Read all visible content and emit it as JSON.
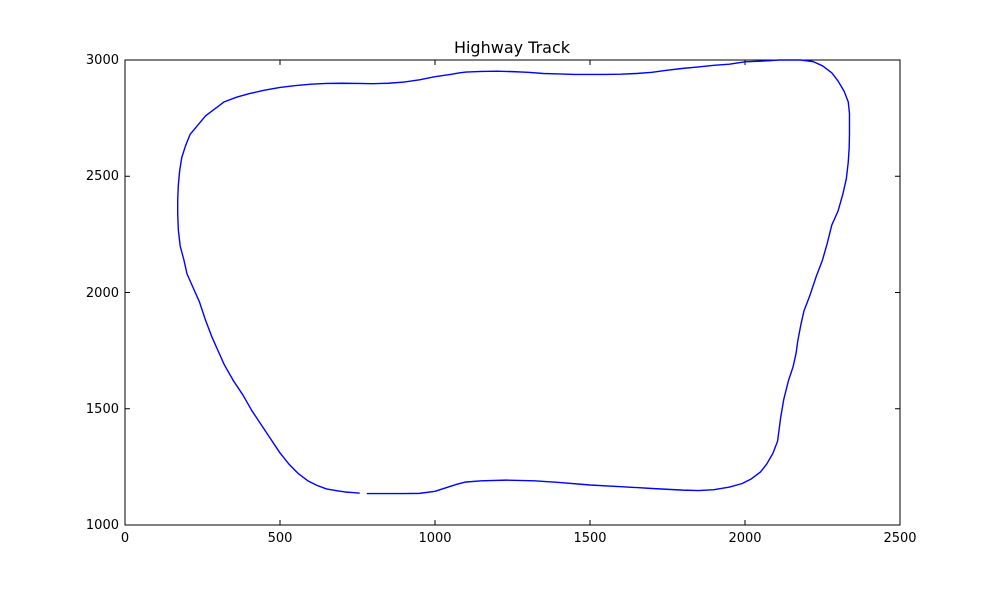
{
  "chart_data": {
    "type": "line",
    "title": "Highway Track",
    "xlabel": "",
    "ylabel": "",
    "xlim": [
      0,
      2500
    ],
    "ylim": [
      1000,
      3000
    ],
    "xticks": [
      0,
      500,
      1000,
      1500,
      2000,
      2500
    ],
    "yticks": [
      1000,
      1500,
      2000,
      2500,
      3000
    ],
    "xtick_labels": [
      "0",
      "500",
      "1000",
      "1500",
      "2000",
      "2500"
    ],
    "ytick_labels": [
      "1000",
      "1500",
      "2000",
      "2500",
      "3000"
    ],
    "grid": false,
    "line_color": "#0000ff",
    "series": [
      {
        "x": [
          780,
          840,
          900,
          950,
          1000,
          1040,
          1070,
          1100,
          1150,
          1230,
          1320,
          1400,
          1500,
          1600,
          1700,
          1800,
          1850,
          1900,
          1950,
          1990,
          2020,
          2050,
          2070,
          2090,
          2105,
          2110,
          2115,
          2125,
          2140,
          2155,
          2165,
          2170,
          2180,
          2190,
          2210,
          2230,
          2250,
          2265,
          2280,
          2300,
          2315,
          2327,
          2333,
          2336,
          2337,
          2337,
          2333,
          2320,
          2300,
          2280,
          2250,
          2220,
          2180,
          2140,
          2110,
          2080,
          2050,
          2000,
          1950,
          1900,
          1850,
          1800,
          1750,
          1700,
          1650,
          1600,
          1550,
          1500,
          1450,
          1400,
          1350,
          1300,
          1250,
          1200,
          1150,
          1100,
          1080,
          1050,
          1000,
          950,
          900,
          850,
          800,
          750,
          700,
          650,
          600,
          550,
          500,
          450,
          400,
          360,
          320,
          290,
          260,
          235,
          210,
          195,
          183,
          176,
          172,
          170,
          170,
          172,
          178,
          190,
          200,
          220,
          240,
          260,
          280,
          300,
          320,
          350,
          380,
          410,
          440,
          470,
          500,
          530,
          560,
          590,
          620,
          650,
          680,
          710,
          740,
          757
        ],
        "y": [
          1135,
          1135,
          1135,
          1136,
          1145,
          1162,
          1175,
          1185,
          1190,
          1193,
          1190,
          1183,
          1172,
          1165,
          1157,
          1150,
          1148,
          1152,
          1163,
          1178,
          1198,
          1228,
          1262,
          1308,
          1360,
          1410,
          1462,
          1540,
          1620,
          1680,
          1740,
          1790,
          1860,
          1920,
          1990,
          2070,
          2140,
          2210,
          2290,
          2350,
          2420,
          2490,
          2560,
          2620,
          2680,
          2770,
          2820,
          2865,
          2910,
          2945,
          2975,
          2993,
          3000,
          3000,
          3000,
          2997,
          2995,
          2992,
          2982,
          2977,
          2970,
          2964,
          2956,
          2947,
          2942,
          2939,
          2938,
          2938,
          2938,
          2940,
          2942,
          2947,
          2950,
          2952,
          2951,
          2948,
          2945,
          2938,
          2928,
          2915,
          2905,
          2900,
          2898,
          2899,
          2900,
          2899,
          2896,
          2890,
          2882,
          2870,
          2855,
          2840,
          2820,
          2790,
          2760,
          2720,
          2680,
          2630,
          2580,
          2520,
          2460,
          2400,
          2340,
          2270,
          2200,
          2140,
          2080,
          2020,
          1960,
          1880,
          1810,
          1750,
          1690,
          1620,
          1560,
          1490,
          1430,
          1370,
          1310,
          1260,
          1220,
          1190,
          1170,
          1155,
          1148,
          1142,
          1139,
          1137
        ]
      }
    ]
  }
}
